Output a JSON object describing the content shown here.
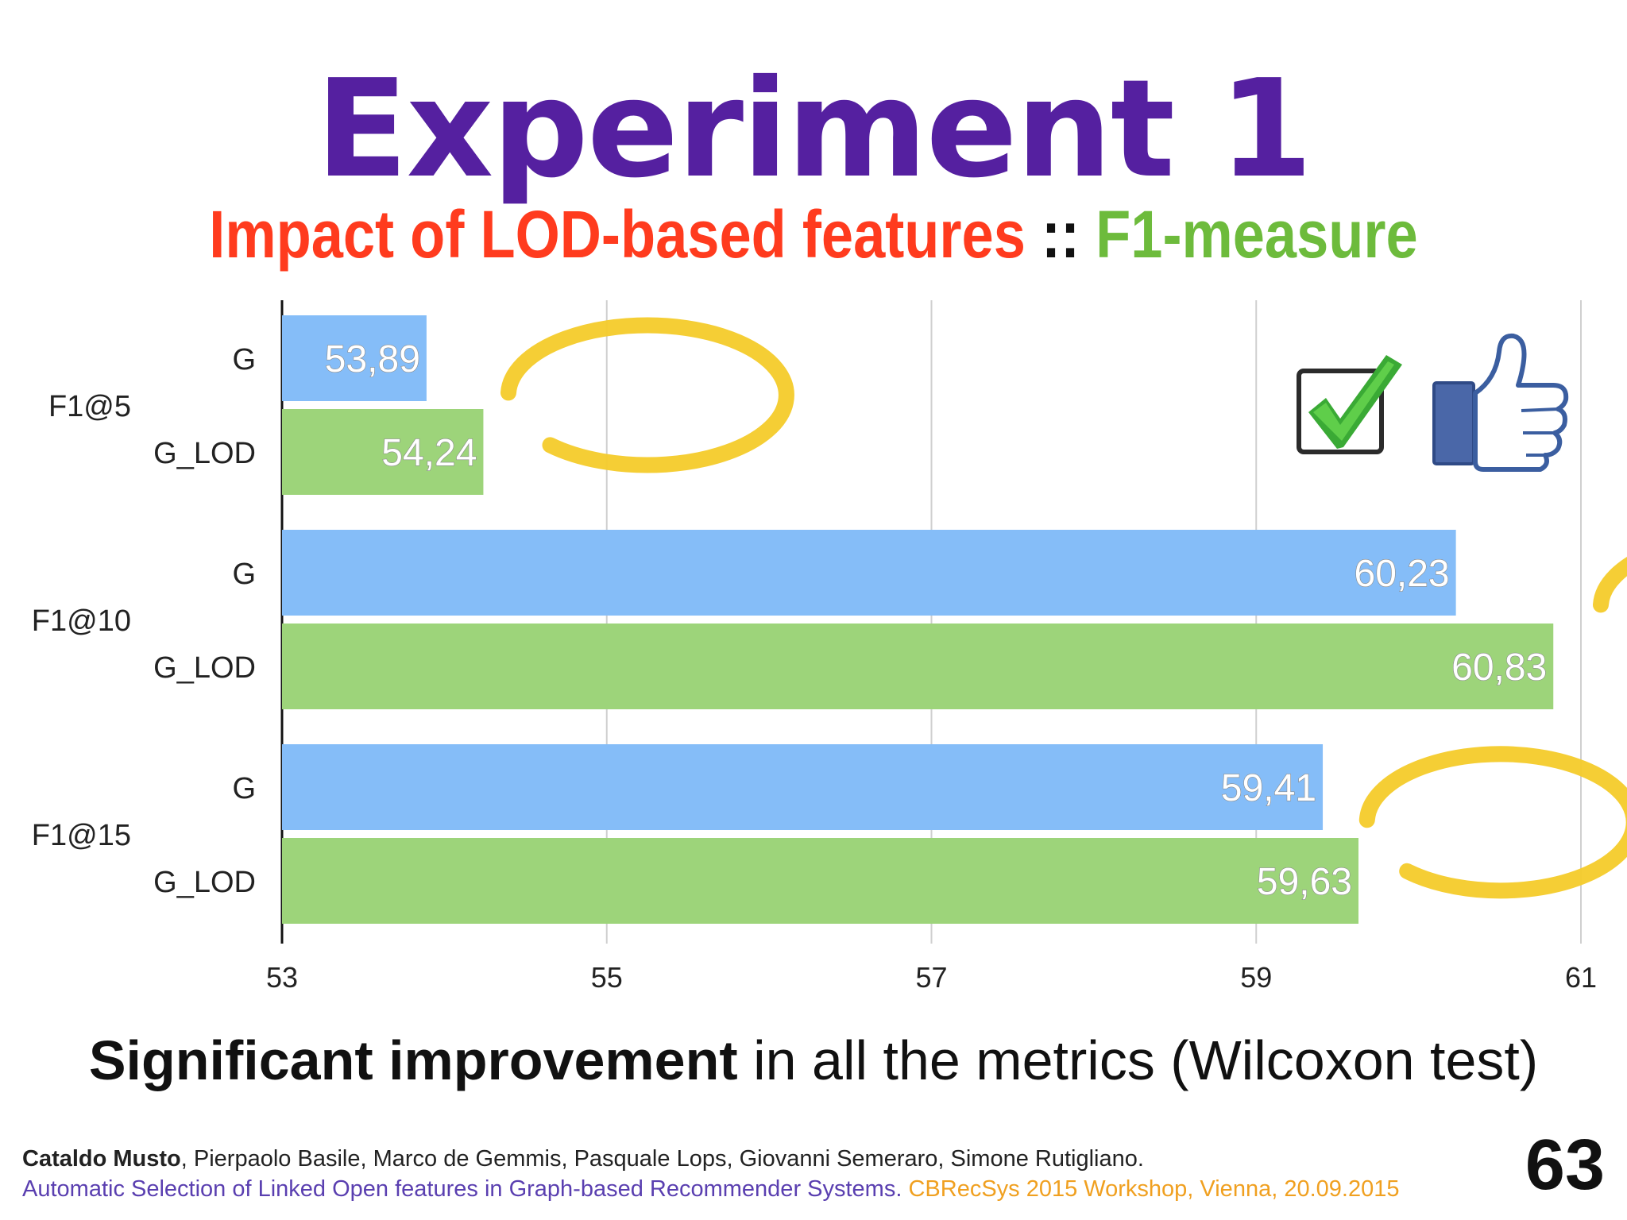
{
  "slide": {
    "title": "Experiment 1",
    "subtitle_red": "Impact of LOD-based features",
    "subtitle_sep": " :: ",
    "subtitle_green": "F1-measure",
    "statement_bold": "Significant improvement",
    "statement_rest": " in all the metrics (Wilcoxon test)",
    "footer_lead_author": "Cataldo Musto",
    "footer_authors_rest": ", Pierpaolo Basile, Marco de Gemmis, Pasquale Lops, Giovanni Semeraro, Simone Rutigliano.",
    "footer_paper": "Automatic Selection of Linked Open features in Graph-based Recommender Systems.",
    "footer_venue": " CBRecSys 2015 Workshop, Vienna, 20.09.2015",
    "page_number": "63",
    "icons": [
      "checkbox-checkmark-icon",
      "thumbs-up-icon"
    ]
  },
  "chart_data": {
    "type": "bar",
    "orientation": "horizontal",
    "categories": [
      "F1@5",
      "F1@10",
      "F1@15"
    ],
    "series": [
      {
        "name": "G",
        "color": "#85bdf8",
        "values": [
          53.89,
          60.23,
          59.41
        ],
        "labels": [
          "53,89",
          "60,23",
          "59,41"
        ]
      },
      {
        "name": "G_LOD",
        "color": "#9dd47a",
        "values": [
          54.24,
          60.83,
          59.63
        ],
        "labels": [
          "54,24",
          "60,83",
          "59,63"
        ]
      }
    ],
    "xlim": [
      53,
      61
    ],
    "xticks": [
      53,
      55,
      57,
      59,
      61
    ],
    "xtick_labels": [
      "53",
      "55",
      "57",
      "59",
      "61"
    ],
    "grid": "vertical",
    "legend": "none",
    "highlighted_series": "G_LOD",
    "highlight_color": "#f4cb2a"
  }
}
